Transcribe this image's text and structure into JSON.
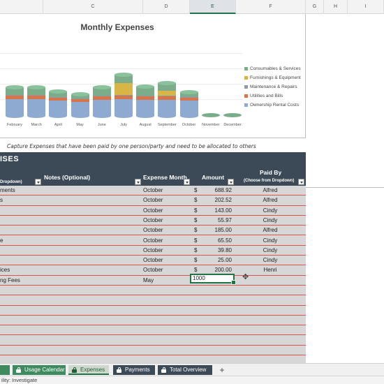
{
  "columns": [
    {
      "letter": "C"
    },
    {
      "letter": "D"
    },
    {
      "letter": "E"
    },
    {
      "letter": "F"
    },
    {
      "letter": "G"
    },
    {
      "letter": "H"
    },
    {
      "letter": "I"
    }
  ],
  "chart_data": {
    "type": "bar",
    "stacked": true,
    "title": "Monthly Expenses",
    "categories": [
      "February",
      "March",
      "April",
      "May",
      "June",
      "July",
      "August",
      "September",
      "October",
      "November",
      "December"
    ],
    "series": [
      {
        "name": "Ownership Rental Costs",
        "color": "#8eaad0",
        "values": [
          40,
          40,
          36,
          34,
          38,
          40,
          38,
          38,
          36,
          0,
          0
        ]
      },
      {
        "name": "Utilities and Bills",
        "color": "#d7744a",
        "values": [
          8,
          8,
          7,
          6,
          8,
          8,
          8,
          8,
          8,
          0,
          0
        ]
      },
      {
        "name": "Maintenance & Repairs",
        "color": "#8e9ba0",
        "values": [
          2,
          2,
          2,
          2,
          2,
          2,
          2,
          2,
          2,
          0,
          0
        ]
      },
      {
        "name": "Furnishings & Equipment",
        "color": "#d8b547",
        "values": [
          0,
          0,
          0,
          0,
          0,
          28,
          0,
          12,
          0,
          0,
          0
        ]
      },
      {
        "name": "Consumables & Services",
        "color": "#7bad8a",
        "values": [
          18,
          18,
          14,
          10,
          20,
          20,
          22,
          18,
          10,
          0,
          0
        ]
      }
    ],
    "legend_position": "right",
    "grid": true
  },
  "caption": "Capture Expenses that have been paid by one person/party and need to be allocated to others",
  "table": {
    "title": "ISES",
    "headers": {
      "category_sub": "Dropdown)",
      "notes": "Notes (Optional)",
      "month": "Expense Month",
      "amount": "Amount",
      "paid_by": "Paid By",
      "paid_by_sub": "(Choose from Dropdown)"
    },
    "rows": [
      {
        "desc": "ments",
        "month": "October",
        "cur": "$",
        "amount": "688.92",
        "by": "Alfred"
      },
      {
        "desc": "s",
        "month": "October",
        "cur": "$",
        "amount": "202.52",
        "by": "Alfred"
      },
      {
        "desc": "",
        "month": "October",
        "cur": "$",
        "amount": "143.00",
        "by": "Cindy"
      },
      {
        "desc": "",
        "month": "October",
        "cur": "$",
        "amount": "55.97",
        "by": "Cindy"
      },
      {
        "desc": "",
        "month": "October",
        "cur": "$",
        "amount": "185.00",
        "by": "Alfred"
      },
      {
        "desc": "e",
        "month": "October",
        "cur": "$",
        "amount": "65.50",
        "by": "Cindy"
      },
      {
        "desc": "",
        "month": "October",
        "cur": "$",
        "amount": "39.80",
        "by": "Cindy"
      },
      {
        "desc": "",
        "month": "October",
        "cur": "$",
        "amount": "25.00",
        "by": "Cindy"
      },
      {
        "desc": "ices",
        "month": "October",
        "cur": "$",
        "amount": "200.00",
        "by": "Henri"
      },
      {
        "desc": "ng Fees",
        "month": "May",
        "cur": "",
        "amount": "",
        "by": ""
      }
    ],
    "editing_value": "1000"
  },
  "tabs": [
    {
      "label": "Usage Calendar",
      "locked": true,
      "color": "#3f8a5f",
      "active": false
    },
    {
      "label": "Expenses",
      "locked": true,
      "color": "#3c4a58",
      "active": true
    },
    {
      "label": "Payments",
      "locked": true,
      "color": "#3c4a58",
      "active": false
    },
    {
      "label": "Total Overview",
      "locked": true,
      "color": "#3c4a58",
      "active": false
    }
  ],
  "add_sheet": "+",
  "status": {
    "text": "ility: Investigate"
  }
}
